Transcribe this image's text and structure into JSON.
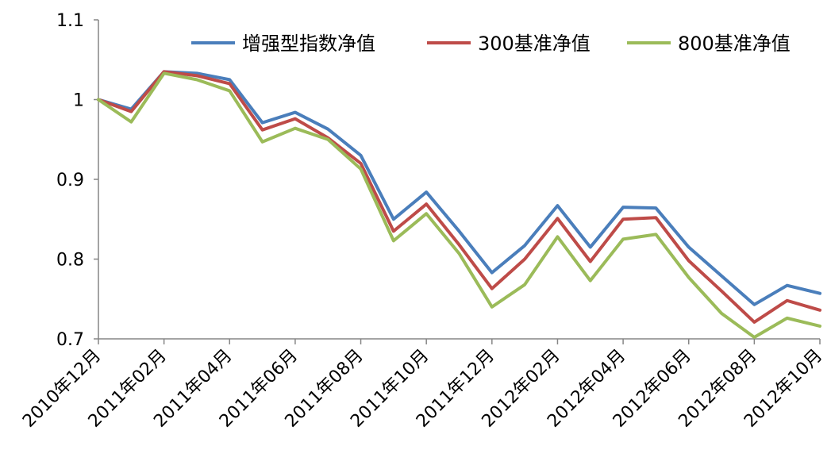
{
  "chart_data": {
    "type": "line",
    "title": "",
    "xlabel": "",
    "ylabel": "",
    "ylim": [
      0.7,
      1.1
    ],
    "yticks": [
      "0.7",
      "0.8",
      "0.9",
      "1",
      "1.1"
    ],
    "grid": false,
    "legend_position": "top-right",
    "x_tick_labels": [
      "2010年12月",
      "2011年02月",
      "2011年04月",
      "2011年06月",
      "2011年08月",
      "2011年10月",
      "2011年12月",
      "2012年02月",
      "2012年04月",
      "2012年06月",
      "2012年08月",
      "2012年10月"
    ],
    "x": [
      0,
      0.5,
      1,
      1.5,
      2,
      2.5,
      3,
      3.5,
      4,
      4.5,
      5,
      5.5,
      6,
      6.5,
      7,
      7.5,
      8,
      8.5,
      9,
      9.5,
      10,
      10.5,
      11
    ],
    "series": [
      {
        "name": "增强型指数净值",
        "color": "#4a7ebb",
        "values": [
          1.0,
          0.988,
          1.035,
          1.033,
          1.025,
          0.971,
          0.984,
          0.963,
          0.93,
          0.85,
          0.884,
          0.835,
          0.783,
          0.817,
          0.867,
          0.815,
          0.865,
          0.864,
          0.815,
          0.779,
          0.743,
          0.767,
          0.757
        ]
      },
      {
        "name": "300基准净值",
        "color": "#be4b48",
        "values": [
          1.0,
          0.985,
          1.035,
          1.03,
          1.02,
          0.962,
          0.976,
          0.952,
          0.92,
          0.835,
          0.869,
          0.818,
          0.763,
          0.8,
          0.851,
          0.797,
          0.85,
          0.852,
          0.798,
          0.76,
          0.721,
          0.748,
          0.736
        ]
      },
      {
        "name": "800基准净值",
        "color": "#9bbb59",
        "values": [
          1.0,
          0.972,
          1.033,
          1.025,
          1.011,
          0.947,
          0.964,
          0.95,
          0.913,
          0.823,
          0.857,
          0.807,
          0.74,
          0.768,
          0.828,
          0.773,
          0.825,
          0.831,
          0.777,
          0.732,
          0.702,
          0.726,
          0.716
        ]
      }
    ]
  }
}
